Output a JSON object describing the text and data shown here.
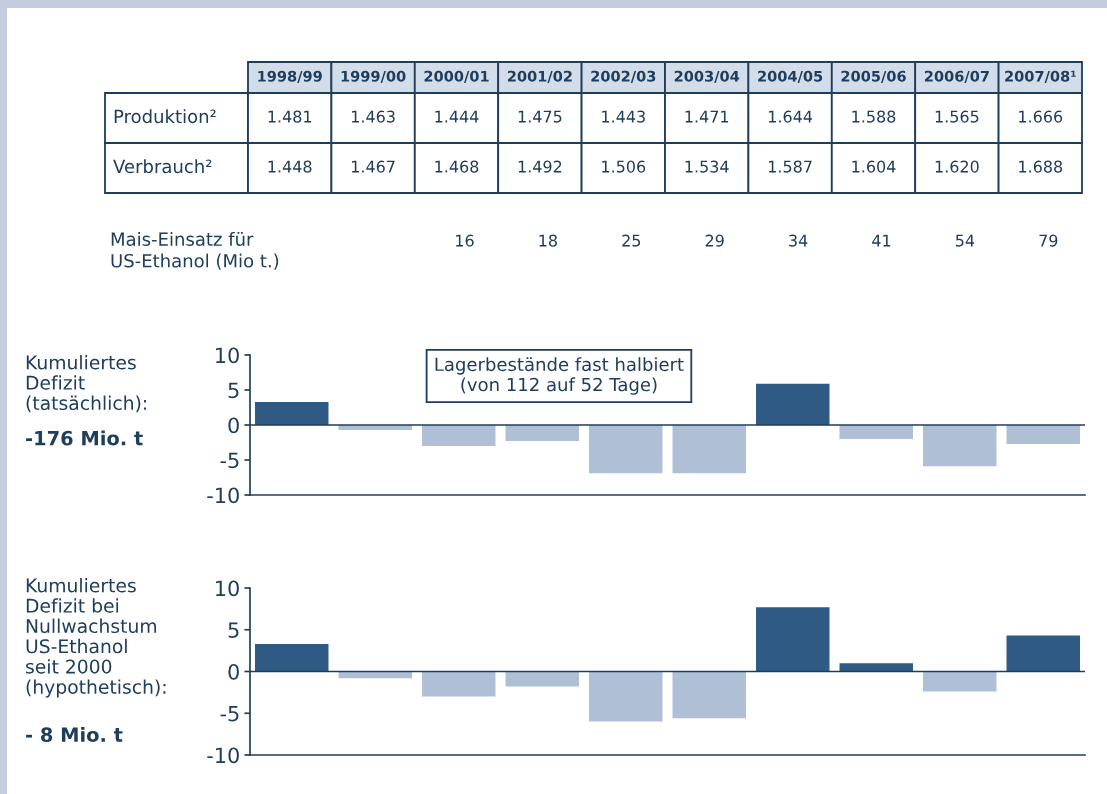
{
  "chart_data": [
    {
      "type": "other",
      "categories": [
        "1998/99",
        "1999/00",
        "2000/01",
        "2001/02",
        "2002/03",
        "2003/04",
        "2004/05",
        "2005/06",
        "2006/07",
        "2007/08¹"
      ],
      "series": [
        {
          "name": "Produktion²",
          "values": [
            1481,
            1463,
            1444,
            1475,
            1443,
            1471,
            1644,
            1588,
            1565,
            1666
          ],
          "value_labels": [
            "1.481",
            "1.463",
            "1.444",
            "1.475",
            "1.443",
            "1.471",
            "1.644",
            "1.588",
            "1.565",
            "1.666"
          ]
        },
        {
          "name": "Verbrauch²",
          "values": [
            1448,
            1467,
            1468,
            1492,
            1506,
            1534,
            1587,
            1604,
            1620,
            1688
          ],
          "value_labels": [
            "1.448",
            "1.467",
            "1.468",
            "1.492",
            "1.506",
            "1.534",
            "1.587",
            "1.604",
            "1.620",
            "1.688"
          ]
        },
        {
          "name": "Mais-Einsatz für\nUS-Ethanol (Mio t.)",
          "values": [
            null,
            null,
            16,
            18,
            25,
            29,
            34,
            41,
            54,
            79
          ],
          "value_labels": [
            null,
            null,
            "16",
            "18",
            "25",
            "29",
            "34",
            "41",
            "54",
            "79"
          ]
        }
      ]
    },
    {
      "type": "bar",
      "categories": [
        null,
        null,
        null,
        null,
        null,
        null,
        null,
        null,
        null,
        null
      ],
      "values": [
        3.3,
        -0.7,
        -3.0,
        -2.3,
        -6.9,
        -6.9,
        5.9,
        -2.0,
        -5.9,
        -2.7
      ],
      "colors": [
        "#2e5a84",
        "#aebfd6",
        "#aebfd6",
        "#aebfd6",
        "#aebfd6",
        "#aebfd6",
        "#2e5a84",
        "#aebfd6",
        "#aebfd6",
        "#aebfd6"
      ],
      "ylim": [
        -10,
        10
      ],
      "yticks": [
        -10,
        -5,
        0,
        5,
        10
      ],
      "ylabel": "Kumuliertes\nDefizit\n(tatsächlich):",
      "ref_lines": [
        {
          "axis": "y",
          "value": 0,
          "color": "#1f3d5c"
        }
      ],
      "annotations": [
        "Lagerbestände fast halbiert\n(von 112 auf 52 Tage)",
        "-176 Mio. t"
      ]
    },
    {
      "type": "bar",
      "categories": [
        null,
        null,
        null,
        null,
        null,
        null,
        null,
        null,
        null,
        null
      ],
      "values": [
        3.3,
        -0.8,
        -3.0,
        -1.8,
        -6.0,
        -5.6,
        7.7,
        1.0,
        -2.4,
        4.3
      ],
      "colors": [
        "#2e5a84",
        "#aebfd6",
        "#aebfd6",
        "#aebfd6",
        "#aebfd6",
        "#aebfd6",
        "#2e5a84",
        "#2e5a84",
        "#aebfd6",
        "#2e5a84"
      ],
      "ylim": [
        -10,
        10
      ],
      "yticks": [
        -10,
        -5,
        0,
        5,
        10
      ],
      "ylabel": "Kumuliertes\nDefizit bei\nNullwachstum\nUS-Ethanol\nseit 2000\n(hypothetisch):",
      "ref_lines": [
        {
          "axis": "y",
          "value": 0,
          "color": "#1f3d5c"
        }
      ],
      "annotations": [
        "- 8 Mio. t"
      ]
    }
  ]
}
